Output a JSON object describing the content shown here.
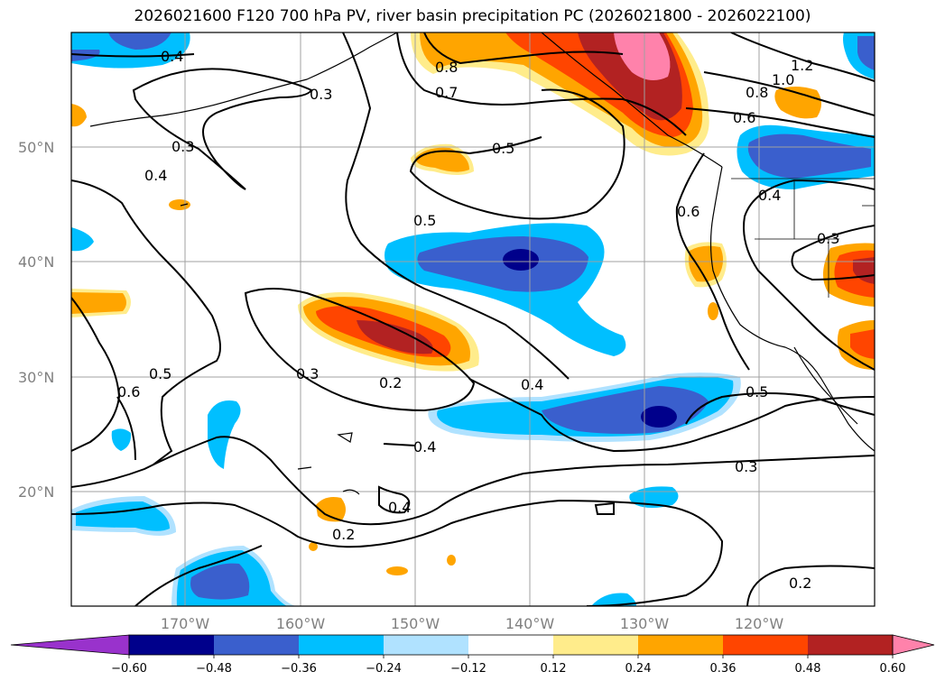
{
  "title": "2026021600 F120 700 hPa PV, river basin precipitation PC (2026021800 - 2026022100)",
  "lat_labels": [
    "50°N",
    "40°N",
    "30°N",
    "20°N"
  ],
  "lon_labels": [
    "170°W",
    "160°W",
    "150°W",
    "140°W",
    "130°W",
    "120°W"
  ],
  "contour_labels": [
    "0.4",
    "0.3",
    "0.8",
    "0.7",
    "1.2",
    "1.0",
    "0.8",
    "0.6",
    "0.3",
    "0.4",
    "0.5",
    "0.5",
    "0.6",
    "0.4",
    "0.3",
    "0.5",
    "0.6",
    "0.3",
    "0.2",
    "0.4",
    "0.5",
    "0.4",
    "0.4",
    "0.3",
    "0.2",
    "0.2"
  ],
  "colorbar": {
    "ticks": [
      "−0.60",
      "−0.48",
      "−0.36",
      "−0.24",
      "−0.12",
      "0.12",
      "0.24",
      "0.36",
      "0.48",
      "0.60"
    ],
    "colors": [
      "#9932cc",
      "#00008b",
      "#3a5fcd",
      "#00bfff",
      "#b0e2ff",
      "#ffffff",
      "#ffec8b",
      "#ffa500",
      "#ff4500",
      "#b22222",
      "#ff82ab"
    ]
  }
}
